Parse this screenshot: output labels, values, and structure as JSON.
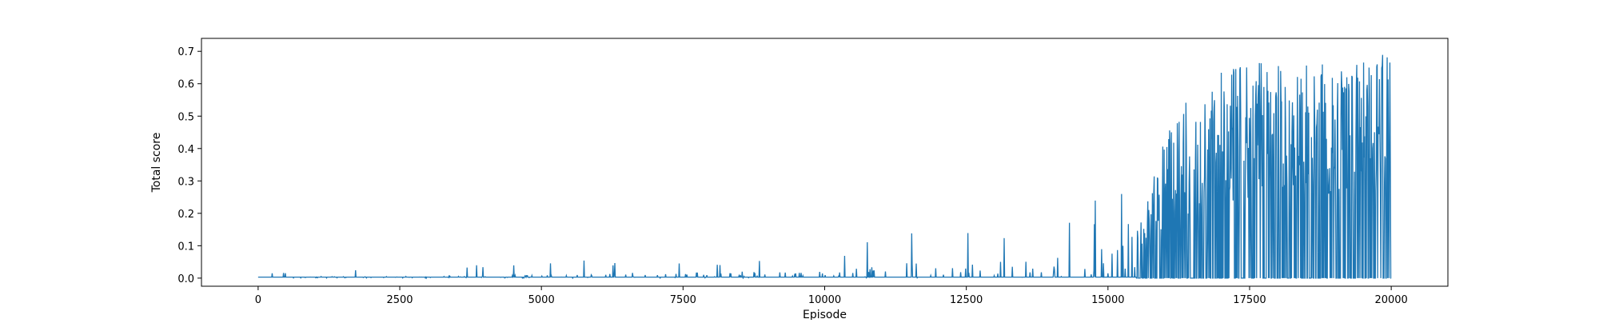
{
  "chart_data": {
    "type": "line",
    "title": "",
    "xlabel": "Episode",
    "ylabel": "Total score",
    "xlim": [
      -1000,
      21000
    ],
    "ylim": [
      -0.025,
      0.74
    ],
    "xticks": [
      0,
      2500,
      5000,
      7500,
      10000,
      12500,
      15000,
      17500,
      20000
    ],
    "xtick_labels": [
      "0",
      "2500",
      "5000",
      "7500",
      "10000",
      "12500",
      "15000",
      "17500",
      "20000"
    ],
    "yticks": [
      0.0,
      0.1,
      0.2,
      0.3,
      0.4,
      0.5,
      0.6,
      0.7
    ],
    "ytick_labels": [
      "0.0",
      "0.1",
      "0.2",
      "0.3",
      "0.4",
      "0.5",
      "0.6",
      "0.7"
    ],
    "grid": false,
    "series": [
      {
        "color": "#1f77b4",
        "episodes": 20000,
        "x": [
          0,
          2500,
          5000,
          7500,
          10000,
          11000,
          12000,
          13000,
          14000,
          15000,
          15500,
          16000,
          16500,
          17000,
          17500,
          18000,
          18500,
          19000,
          19500,
          20000
        ],
        "y_baseline": [
          0.0,
          0.0,
          0.0,
          0.0,
          0.0,
          0.0,
          0.0,
          0.0,
          0.0,
          0.0,
          0.0,
          0.0,
          0.0,
          0.0,
          0.0,
          0.0,
          0.0,
          0.0,
          0.0,
          0.0
        ],
        "y_peak": [
          0.02,
          0.03,
          0.05,
          0.07,
          0.05,
          0.16,
          0.16,
          0.16,
          0.12,
          0.29,
          0.35,
          0.45,
          0.6,
          0.65,
          0.67,
          0.66,
          0.67,
          0.69,
          0.7,
          0.71
        ],
        "y_dense_band": [
          0.005,
          0.005,
          0.01,
          0.02,
          0.02,
          0.05,
          0.05,
          0.05,
          0.06,
          0.1,
          0.2,
          0.4,
          0.5,
          0.55,
          0.6,
          0.6,
          0.62,
          0.65,
          0.66,
          0.68
        ]
      }
    ]
  }
}
